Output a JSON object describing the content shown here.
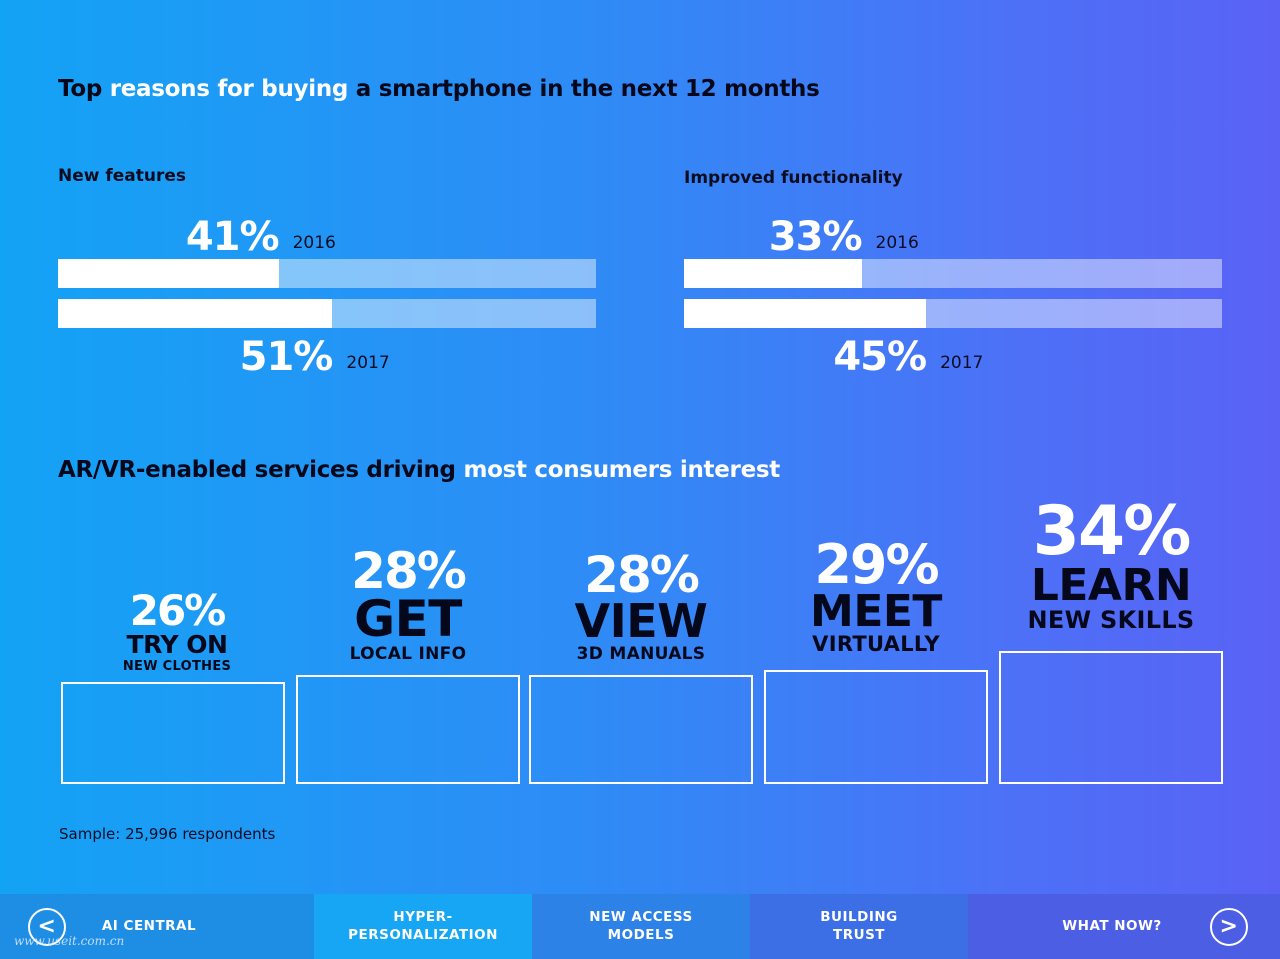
{
  "top_title": {
    "part1": "Top ",
    "part2": "reasons for buying",
    "part3": " a smartphone in the next 12 months"
  },
  "arvr_title": {
    "part1": "AR/VR-enabled services driving ",
    "part2": "most consumers interest"
  },
  "chart_data": [
    {
      "type": "bar",
      "title": "New features",
      "categories": [
        "2016",
        "2017"
      ],
      "values": [
        41,
        51
      ],
      "labels": [
        "41%",
        "51%"
      ],
      "ylim": [
        0,
        100
      ],
      "unit": "%"
    },
    {
      "type": "bar",
      "title": "Improved functionality",
      "categories": [
        "2016",
        "2017"
      ],
      "values": [
        33,
        45
      ],
      "labels": [
        "33%",
        "45%"
      ],
      "ylim": [
        0,
        100
      ],
      "unit": "%"
    },
    {
      "type": "bar",
      "categories": [
        "TRY ON NEW CLOTHES",
        "GET LOCAL INFO",
        "VIEW 3D MANUALS",
        "MEET VIRTUALLY",
        "LEARN NEW SKILLS"
      ],
      "values": [
        26,
        28,
        28,
        29,
        34
      ],
      "items": [
        {
          "pct": "26%",
          "word1": "TRY ON",
          "word2": "NEW CLOTHES"
        },
        {
          "pct": "28%",
          "word1": "GET",
          "word2": "LOCAL INFO"
        },
        {
          "pct": "28%",
          "word1": "VIEW",
          "word2": "3D MANUALS"
        },
        {
          "pct": "29%",
          "word1": "MEET",
          "word2": "VIRTUALLY"
        },
        {
          "pct": "34%",
          "word1": "LEARN",
          "word2": "NEW SKILLS"
        }
      ],
      "unit": "%"
    }
  ],
  "sample_text": "Sample: 25,996 respondents",
  "nav": {
    "prev_icon": "<",
    "next_icon": ">",
    "items": [
      {
        "label": "AI CENTRAL"
      },
      {
        "label_line1": "HYPER-",
        "label_line2": "PERSONALIZATION"
      },
      {
        "label_line1": "NEW ACCESS",
        "label_line2": "MODELS"
      },
      {
        "label_line1": "BUILDING",
        "label_line2": "TRUST"
      },
      {
        "label": "WHAT NOW?"
      }
    ]
  },
  "watermark": "www.useit.com.cn",
  "colors": {
    "bg_start": "#13a3f5",
    "bg_end": "#5a62f5",
    "dark_text": "#05081a",
    "nav_active": "#17a6f4"
  }
}
